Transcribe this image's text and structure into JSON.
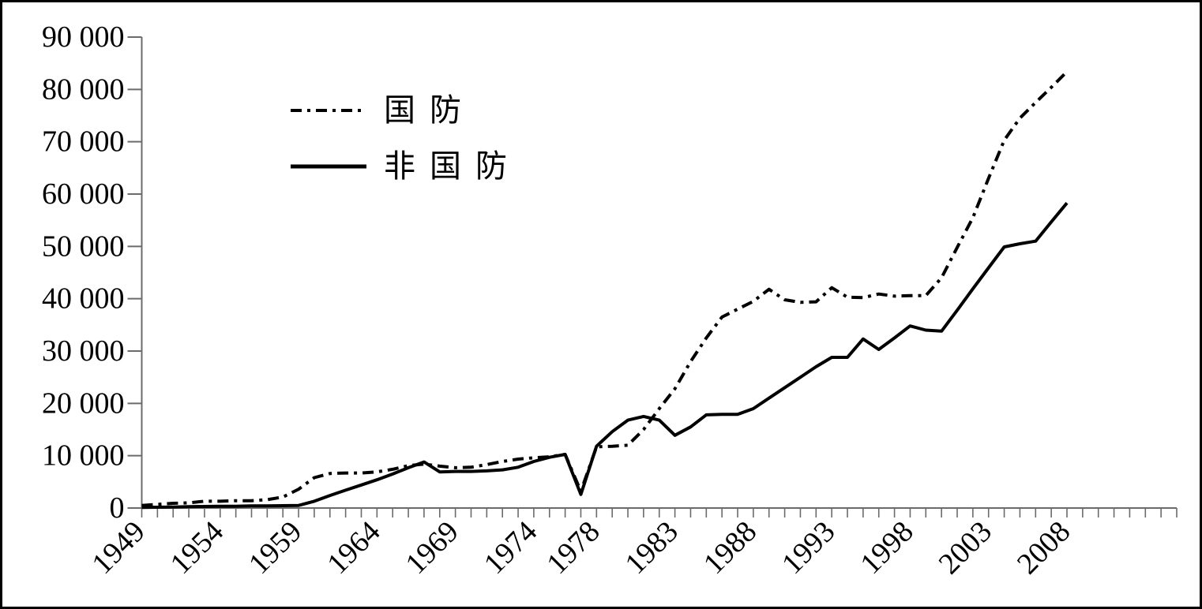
{
  "figure": {
    "background": "#ffffff",
    "border_color": "#000000"
  },
  "legend": {
    "items": [
      {
        "label": "国防",
        "line_style": "dash-dot",
        "dash": "14 7 4 7"
      },
      {
        "label": "非国防",
        "line_style": "solid",
        "dash": "none"
      }
    ]
  },
  "chart_data": {
    "type": "line",
    "title": "",
    "xlabel": "",
    "ylabel": "",
    "grid": false,
    "legend_position": "upper-left-inside",
    "axis_color": "#6b6b6b",
    "line_color": "#000000",
    "xlim": [
      1949,
      2015
    ],
    "ylim": [
      0,
      90000
    ],
    "x_tick_labels": [
      1949,
      1954,
      1959,
      1964,
      1969,
      1974,
      1978,
      1983,
      1988,
      1993,
      1998,
      2003,
      2008
    ],
    "y_ticks": [
      0,
      10000,
      20000,
      30000,
      40000,
      50000,
      60000,
      70000,
      80000,
      90000
    ],
    "y_tick_labels": [
      "0",
      "10 000",
      "20 000",
      "30 000",
      "40 000",
      "50 000",
      "60 000",
      "70 000",
      "80 000",
      "90 000"
    ],
    "x": [
      1949,
      1950,
      1951,
      1952,
      1953,
      1954,
      1955,
      1956,
      1957,
      1958,
      1959,
      1960,
      1961,
      1962,
      1963,
      1964,
      1965,
      1966,
      1967,
      1968,
      1969,
      1970,
      1971,
      1972,
      1973,
      1974,
      1975,
      1976,
      1977,
      1978,
      1979,
      1980,
      1981,
      1982,
      1983,
      1984,
      1985,
      1986,
      1987,
      1988,
      1989,
      1990,
      1991,
      1992,
      1993,
      1994,
      1995,
      1996,
      1997,
      1998,
      1999,
      2000,
      2001,
      2002,
      2003,
      2004,
      2005,
      2006,
      2007,
      2008
    ],
    "series": [
      {
        "name": "国防",
        "style": "dash-dot",
        "values": [
          500,
          700,
          900,
          1000,
          1300,
          1300,
          1400,
          1400,
          1600,
          2100,
          3600,
          5800,
          6600,
          6700,
          6700,
          6900,
          7400,
          8100,
          8400,
          8000,
          7700,
          7800,
          8300,
          8900,
          9350,
          9600,
          9800,
          10250,
          3200,
          11700,
          11800,
          12000,
          15000,
          19000,
          22800,
          28000,
          32500,
          36500,
          38000,
          39500,
          41800,
          39800,
          39300,
          39400,
          42100,
          40300,
          40200,
          40900,
          40500,
          40600,
          40600,
          44000,
          49800,
          55500,
          63000,
          70300,
          74500,
          77500,
          80400,
          83400
        ]
      },
      {
        "name": "非国防",
        "style": "solid",
        "values": [
          100,
          150,
          200,
          250,
          300,
          350,
          350,
          400,
          400,
          450,
          500,
          1300,
          2400,
          3400,
          4400,
          5400,
          6500,
          7700,
          8800,
          6900,
          7000,
          7000,
          7100,
          7300,
          7800,
          8900,
          9700,
          10250,
          2600,
          11800,
          14600,
          16800,
          17500,
          16800,
          13900,
          15500,
          17800,
          17900,
          17900,
          19000,
          21000,
          23000,
          25000,
          27000,
          28800,
          28800,
          32300,
          30300,
          32500,
          34800,
          34000,
          33800,
          37800,
          41900,
          45900,
          49900,
          50500,
          51000,
          54700,
          58300
        ]
      }
    ]
  }
}
